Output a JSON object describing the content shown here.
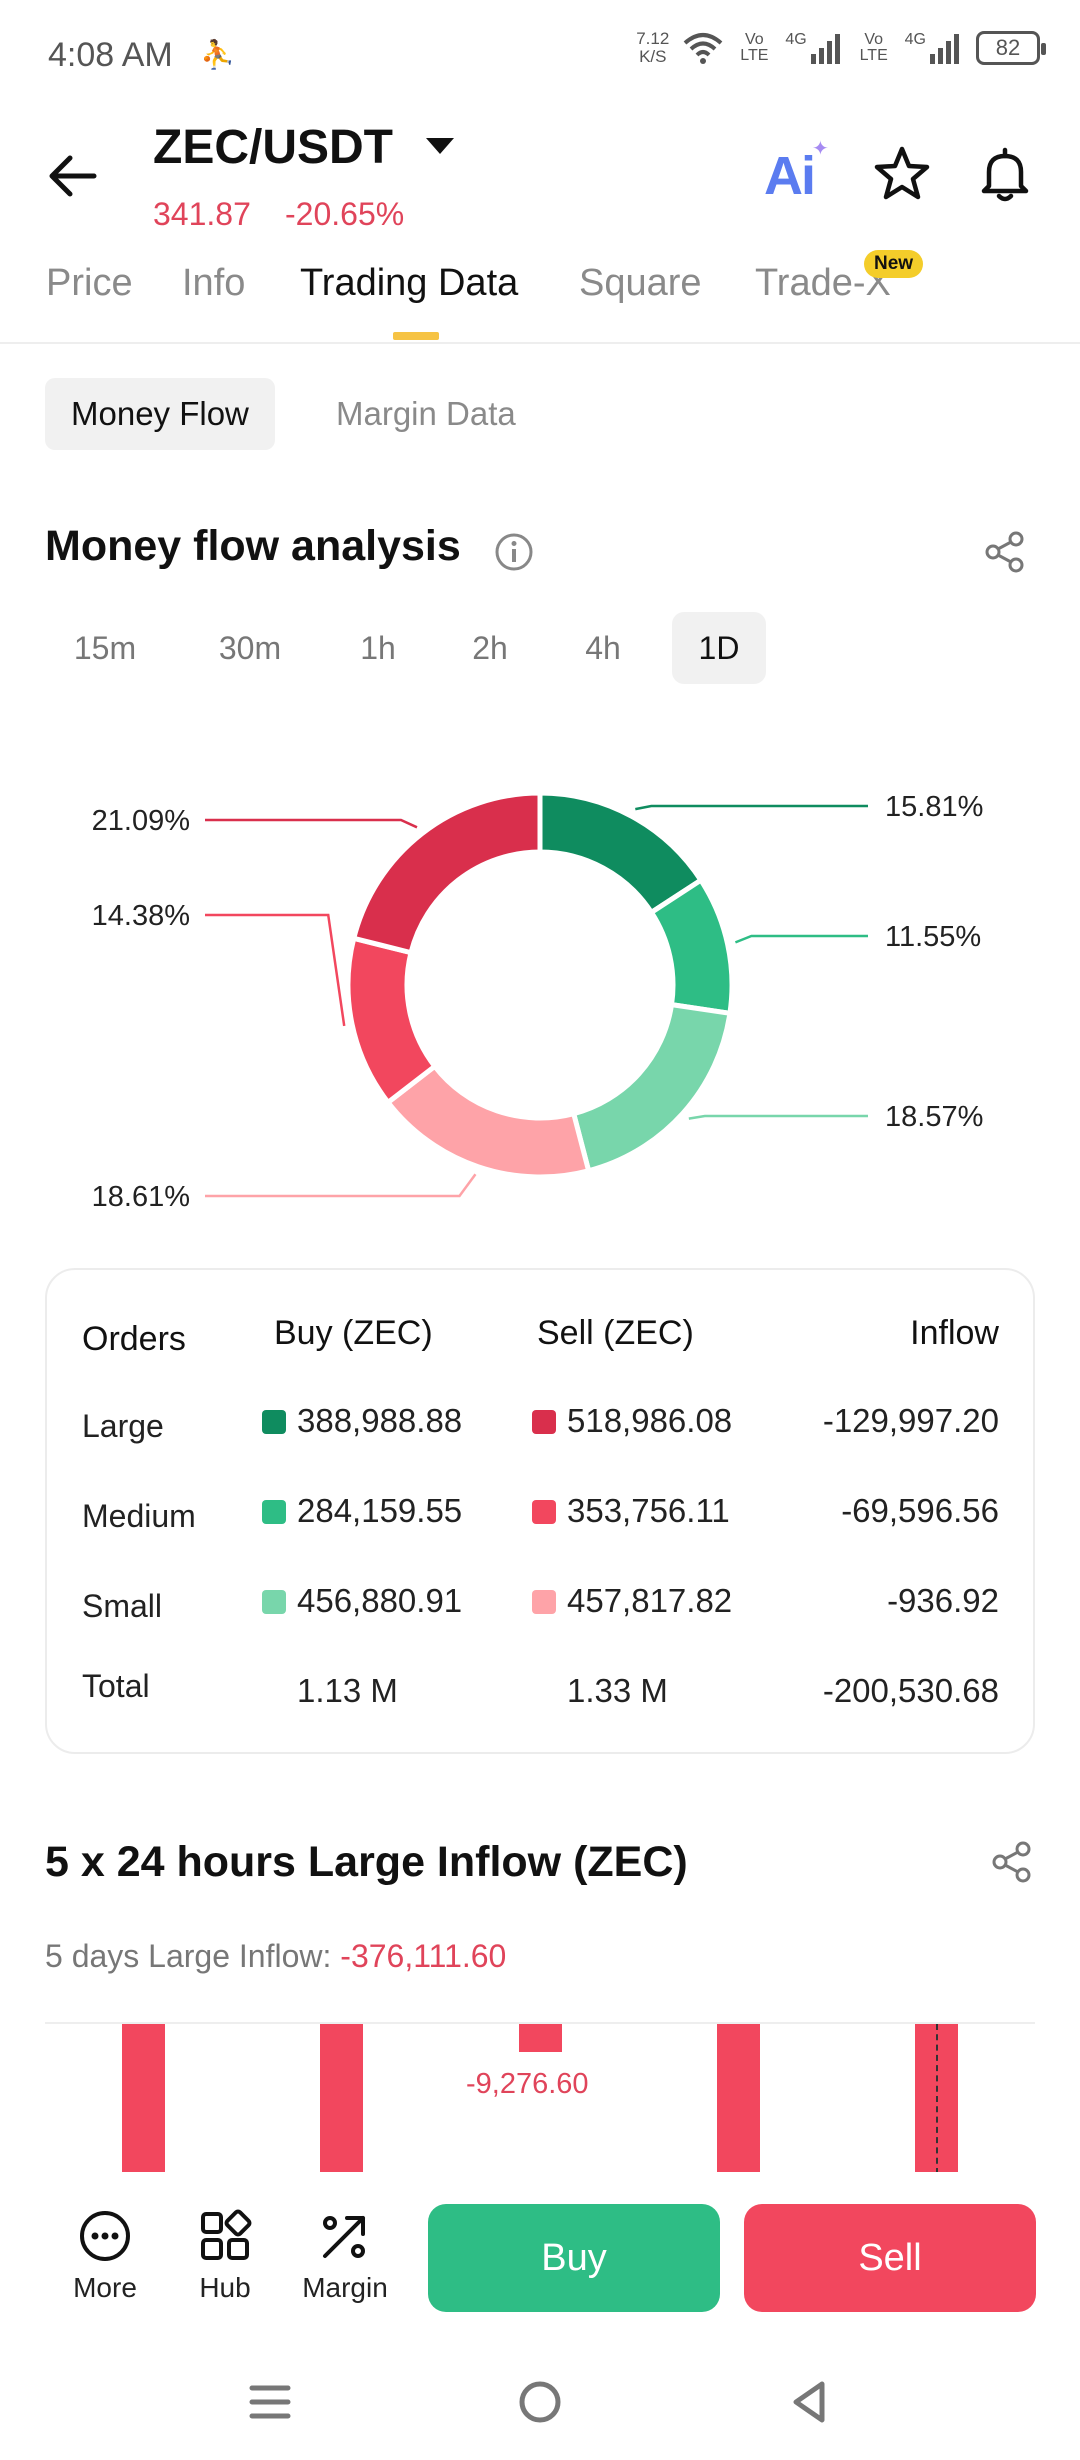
{
  "status_bar": {
    "time": "4:08 AM",
    "speed_value": "7.12",
    "speed_unit": "K/S",
    "sim1_label": "Vo LTE",
    "sim1_net": "4G",
    "sim2_label": "Vo LTE",
    "sim2_net": "4G",
    "battery": "82"
  },
  "header": {
    "pair": "ZEC/USDT",
    "price": "341.87",
    "change": "-20.65%",
    "ai_label": "Ai"
  },
  "tabs": [
    {
      "label": "Price"
    },
    {
      "label": "Info"
    },
    {
      "label": "Trading Data"
    },
    {
      "label": "Square"
    },
    {
      "label": "Trade-X"
    }
  ],
  "new_badge": "New",
  "sub_tabs": [
    {
      "label": "Money Flow"
    },
    {
      "label": "Margin Data"
    }
  ],
  "money_flow": {
    "title": "Money flow analysis",
    "intervals": [
      "15m",
      "30m",
      "1h",
      "2h",
      "4h",
      "1D"
    ],
    "selected_interval": "1D"
  },
  "chart_data": {
    "type": "pie",
    "categories": [
      "Large Buy",
      "Medium Buy",
      "Small Buy",
      "Small Sell",
      "Medium Sell",
      "Large Sell"
    ],
    "values": [
      15.81,
      11.55,
      18.57,
      18.61,
      14.38,
      21.09
    ],
    "labels": [
      "15.81%",
      "11.55%",
      "18.57%",
      "18.61%",
      "14.38%",
      "21.09%"
    ],
    "colors": [
      "#0f8c5f",
      "#2ebd85",
      "#78d6ab",
      "#fea3a8",
      "#f2475e",
      "#d92f4c"
    ]
  },
  "orders_table": {
    "headers": [
      "Orders",
      "Buy (ZEC)",
      "Sell (ZEC)",
      "Inflow"
    ],
    "rows": [
      {
        "label": "Large",
        "buy": "388,988.88",
        "sell": "518,986.08",
        "inflow": "-129,997.20"
      },
      {
        "label": "Medium",
        "buy": "284,159.55",
        "sell": "353,756.11",
        "inflow": "-69,596.56"
      },
      {
        "label": "Small",
        "buy": "456,880.91",
        "sell": "457,817.82",
        "inflow": "-936.92"
      },
      {
        "label": "Total",
        "buy": "1.13 M",
        "sell": "1.33 M",
        "inflow": "-200,530.68"
      }
    ]
  },
  "large_inflow": {
    "title": "5 x 24 hours Large Inflow (ZEC)",
    "days_label": "5 days Large Inflow: ",
    "days_value": "-376,111.60",
    "bar_label": "-9,276.60"
  },
  "bottom_bar": {
    "more": "More",
    "hub": "Hub",
    "margin": "Margin",
    "buy": "Buy",
    "sell": "Sell"
  }
}
